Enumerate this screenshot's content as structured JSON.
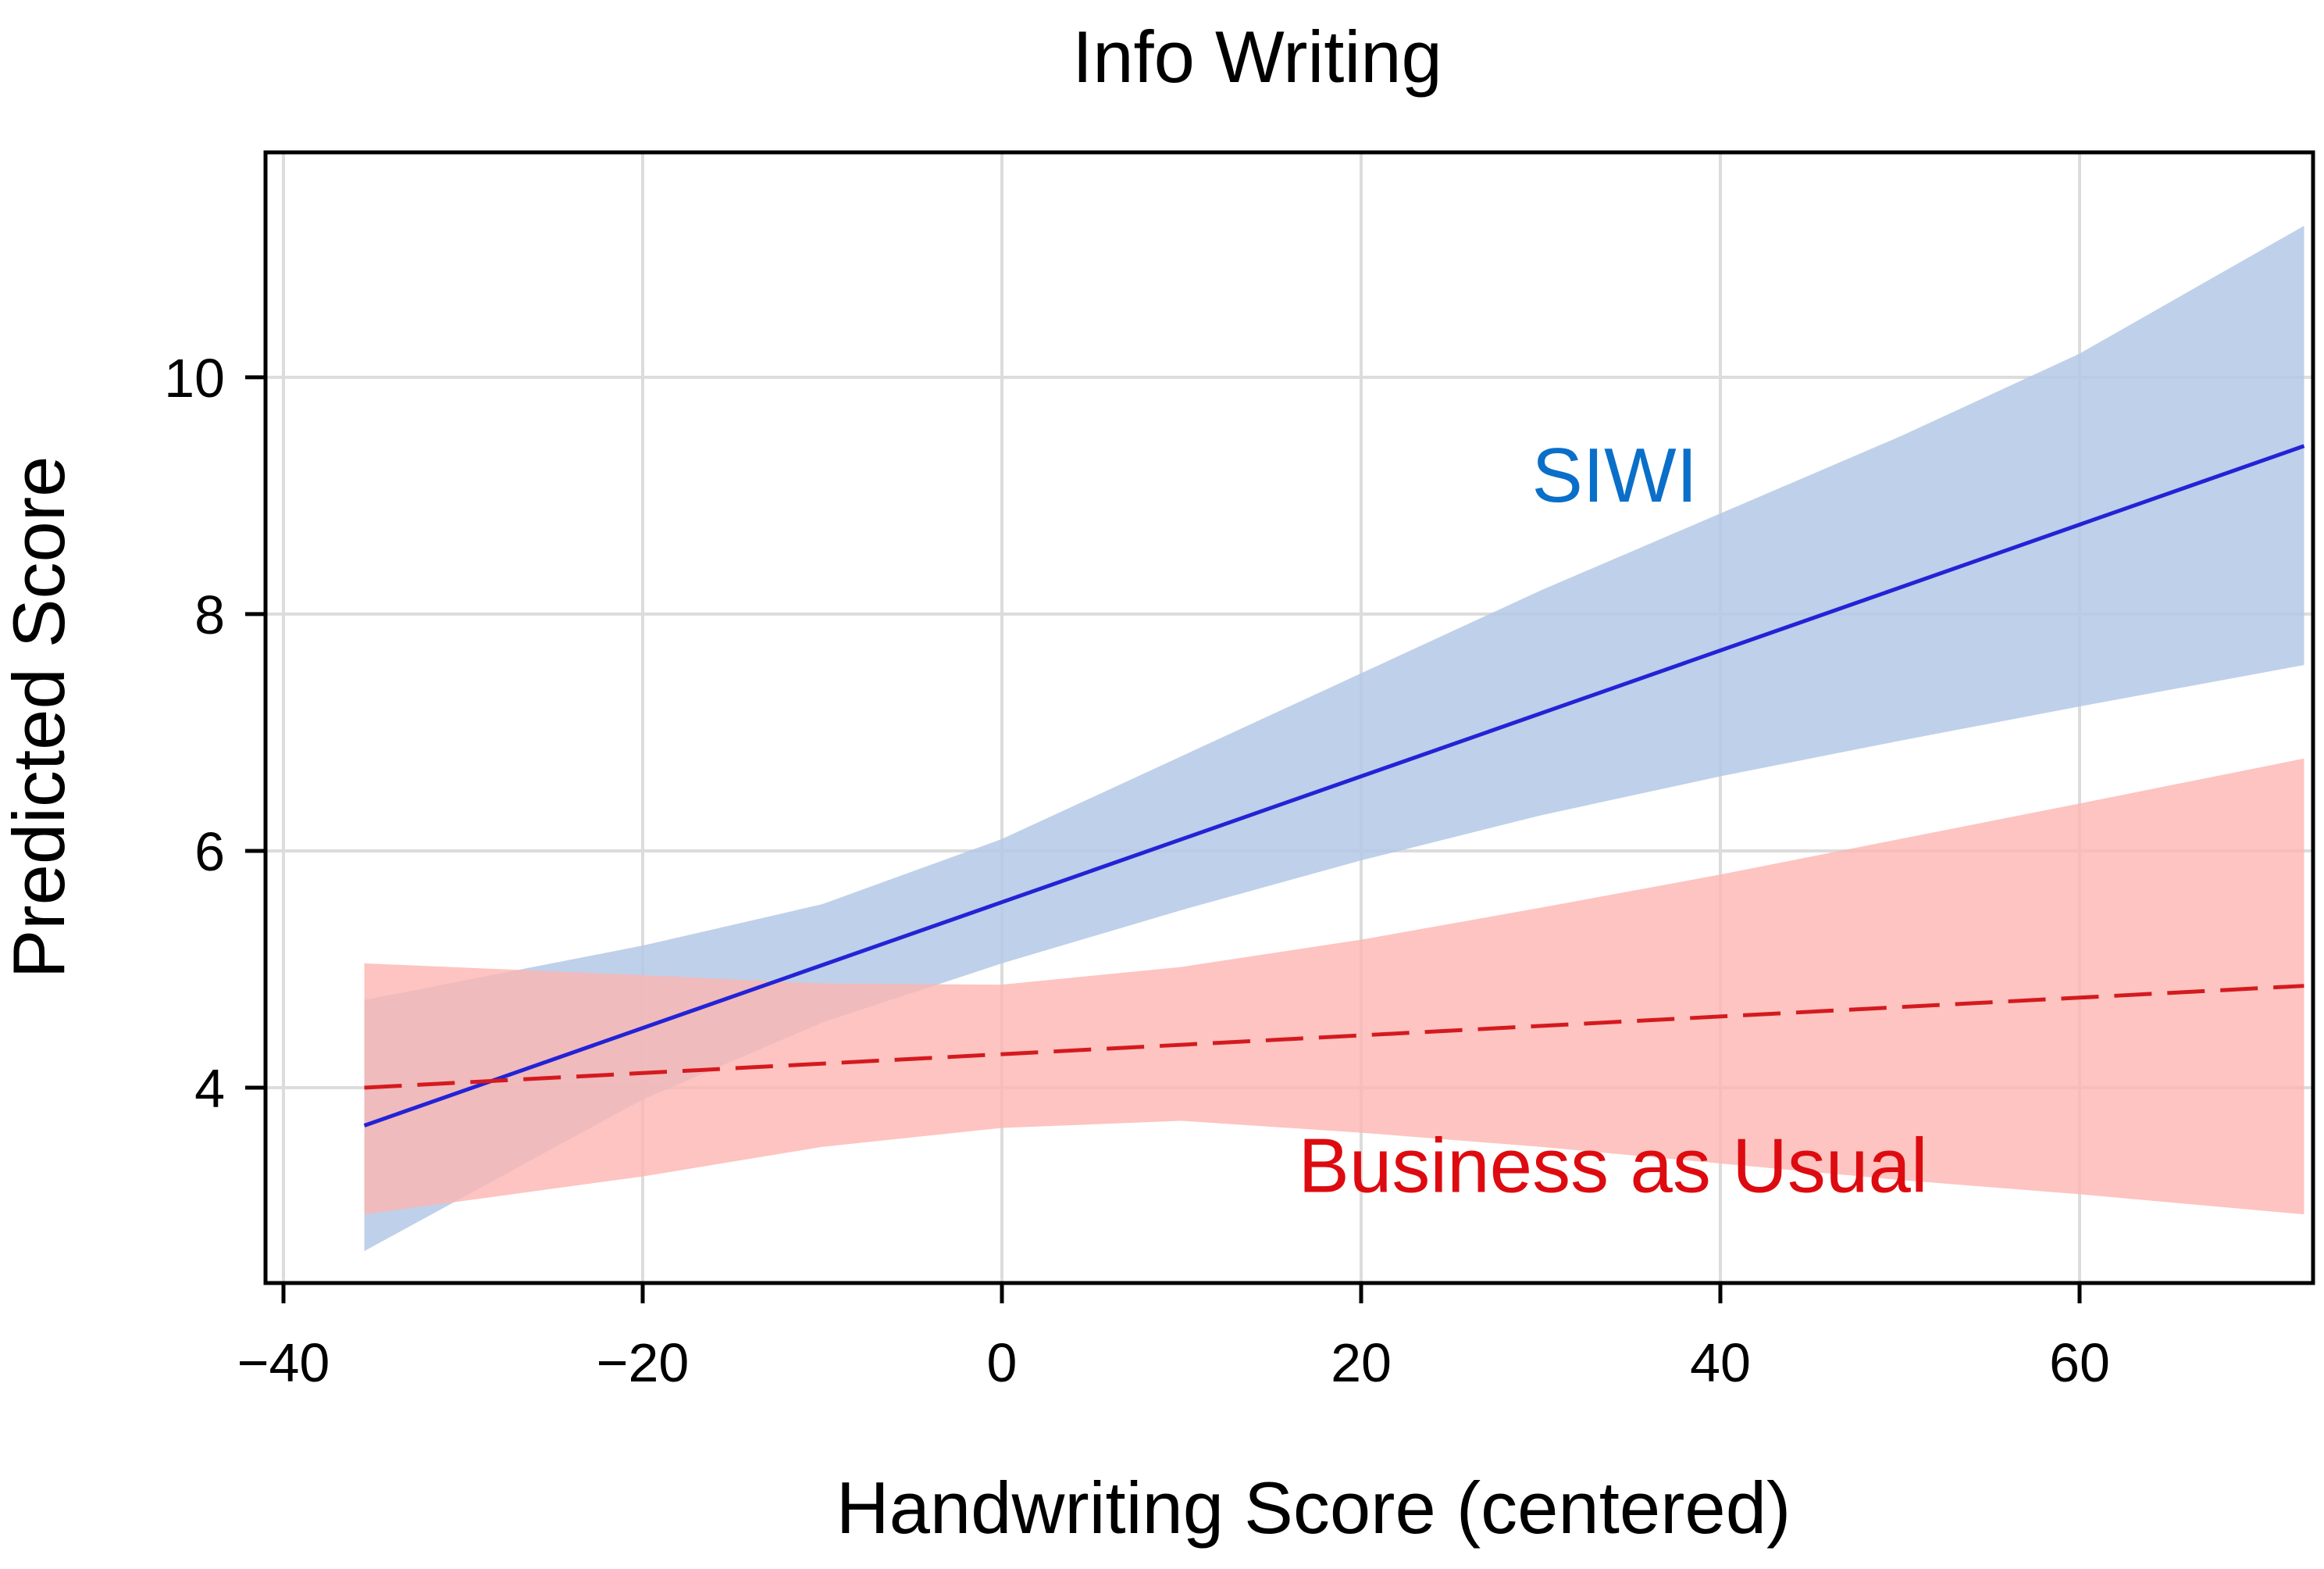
{
  "chart_data": {
    "type": "line",
    "title": "Info Writing",
    "xlabel": "Handwriting Score (centered)",
    "ylabel": "Predicted Score",
    "xlim": [
      -41,
      73
    ],
    "ylim": [
      2.35,
      11.9
    ],
    "xticks": [
      -40,
      -20,
      0,
      20,
      40,
      60
    ],
    "xtick_labels": [
      "−40",
      "−20",
      "0",
      "20",
      "40",
      "60"
    ],
    "yticks": [
      4,
      6,
      8,
      10
    ],
    "ytick_labels": [
      "4",
      "6",
      "8",
      "10"
    ],
    "grid": true,
    "legend": "none",
    "series": [
      {
        "name": "SIWI",
        "color": "#2323d6",
        "label_color": "#0a6fc9",
        "band_color": "#b4c8e6",
        "line_style": "solid",
        "x": [
          -35.5,
          72.5
        ],
        "y": [
          3.68,
          9.42
        ],
        "ci": {
          "x": [
            -35.5,
            -20,
            -10,
            0,
            10,
            20,
            30,
            40,
            50,
            60,
            72.5
          ],
          "lower": [
            2.62,
            3.9,
            4.55,
            5.05,
            5.5,
            5.92,
            6.3,
            6.63,
            6.93,
            7.22,
            7.57
          ],
          "upper": [
            4.74,
            5.2,
            5.55,
            6.1,
            6.8,
            7.5,
            8.2,
            8.85,
            9.5,
            10.2,
            11.28
          ]
        }
      },
      {
        "name": "Business as Usual",
        "color": "#d41a1f",
        "label_color": "#dd0b10",
        "band_color": "#fdb5b1",
        "line_style": "dashed",
        "x": [
          -35.5,
          72.5
        ],
        "y": [
          4.0,
          4.86
        ],
        "ci": {
          "x": [
            -35.5,
            -20,
            -10,
            0,
            10,
            20,
            30,
            40,
            50,
            60,
            72.5
          ],
          "lower": [
            2.93,
            3.25,
            3.5,
            3.66,
            3.72,
            3.62,
            3.5,
            3.36,
            3.22,
            3.1,
            2.93
          ],
          "upper": [
            5.05,
            4.95,
            4.88,
            4.87,
            5.02,
            5.25,
            5.52,
            5.8,
            6.1,
            6.4,
            6.78
          ]
        }
      }
    ],
    "annotations": [
      {
        "text": "SIWI",
        "x": 29.5,
        "y": 8.95,
        "color": "#0a6fc9"
      },
      {
        "text": "Business as Usual",
        "x": 16.5,
        "y": 3.12,
        "color": "#dd0b10"
      }
    ]
  }
}
